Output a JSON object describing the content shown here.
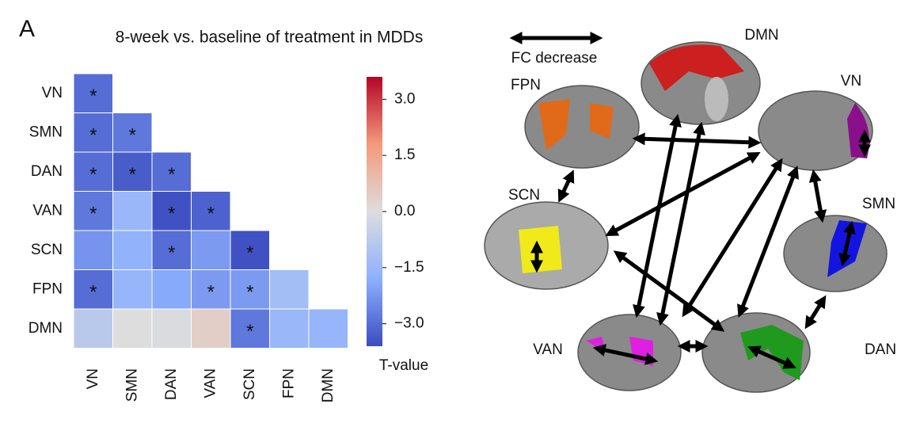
{
  "panel_label": "A",
  "chart_data": {
    "type": "heatmap",
    "title": "8-week vs. baseline of treatment in MDDs",
    "categories": [
      "VN",
      "SMN",
      "DAN",
      "VAN",
      "SCN",
      "FPN",
      "DMN"
    ],
    "values": [
      [
        -3.0,
        null,
        null,
        null,
        null,
        null,
        null
      ],
      [
        -3.0,
        -2.8,
        null,
        null,
        null,
        null,
        null
      ],
      [
        -3.0,
        -3.3,
        -3.0,
        null,
        null,
        null,
        null
      ],
      [
        -2.8,
        -1.5,
        -3.5,
        -3.2,
        null,
        null,
        null
      ],
      [
        -2.3,
        -1.7,
        -3.0,
        -2.2,
        -3.5,
        null,
        null
      ],
      [
        -3.0,
        -1.6,
        -1.9,
        -2.2,
        -2.2,
        -1.3,
        null
      ],
      [
        -0.8,
        0.0,
        -0.1,
        0.4,
        -2.8,
        -1.5,
        -1.6
      ]
    ],
    "annotations": [
      [
        "*",
        null,
        null,
        null,
        null,
        null,
        null
      ],
      [
        "*",
        "*",
        null,
        null,
        null,
        null,
        null
      ],
      [
        "*",
        "*",
        "*",
        null,
        null,
        null,
        null
      ],
      [
        "*",
        null,
        "*",
        "*",
        null,
        null,
        null
      ],
      [
        null,
        null,
        "*",
        null,
        "*",
        null,
        null
      ],
      [
        "*",
        null,
        null,
        "*",
        "*",
        null,
        null
      ],
      [
        null,
        null,
        null,
        null,
        "*",
        null,
        null
      ]
    ],
    "colors": [
      "#3b4cc0",
      "#8db0fe",
      "#dddddd",
      "#f49a7b",
      "#b40426"
    ],
    "clim": [
      -3.6,
      3.6
    ],
    "colorbar_label": "T-value",
    "colorbar_ticks": [
      {
        "value": 3.0,
        "label": "3.0"
      },
      {
        "value": 1.5,
        "label": "1.5"
      },
      {
        "value": 0.0,
        "label": "0.0"
      },
      {
        "value": -1.5,
        "label": "−1.5"
      },
      {
        "value": -3.0,
        "label": "−3.0"
      }
    ]
  },
  "diagram": {
    "legend": "FC decrease",
    "nodes": [
      {
        "label": "DMN"
      },
      {
        "label": "FPN"
      },
      {
        "label": "VN"
      },
      {
        "label": "SCN"
      },
      {
        "label": "SMN"
      },
      {
        "label": "VAN"
      },
      {
        "label": "DAN"
      }
    ]
  }
}
